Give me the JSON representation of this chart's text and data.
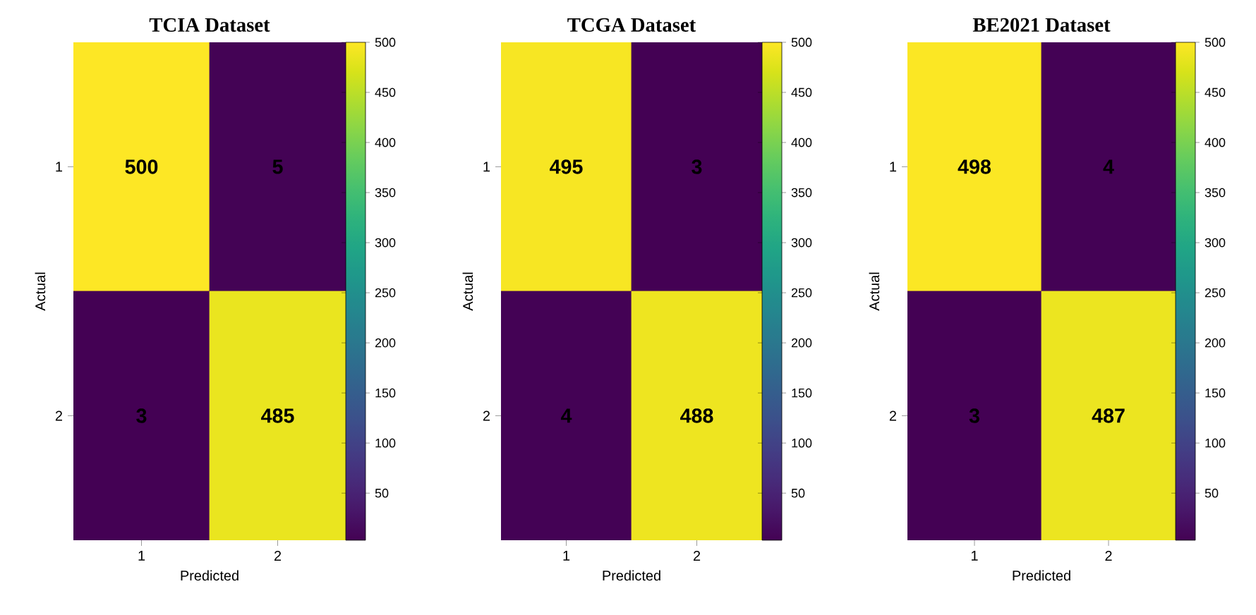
{
  "chart_data": [
    {
      "type": "heatmap",
      "title": "TCIA Dataset",
      "xlabel": "Predicted",
      "ylabel": "Actual",
      "categories": [
        "1",
        "2"
      ],
      "y_categories": [
        "1",
        "2"
      ],
      "cells": [
        [
          500,
          5
        ],
        [
          3,
          485
        ]
      ],
      "clim": [
        3,
        500
      ],
      "cticks": [
        50,
        100,
        150,
        200,
        250,
        300,
        350,
        400,
        450,
        500
      ],
      "data_labels": true
    },
    {
      "type": "heatmap",
      "title": "TCGA Dataset",
      "xlabel": "Predicted",
      "ylabel": "Actual",
      "categories": [
        "1",
        "2"
      ],
      "y_categories": [
        "1",
        "2"
      ],
      "cells": [
        [
          495,
          3
        ],
        [
          4,
          488
        ]
      ],
      "clim": [
        3,
        500
      ],
      "cticks": [
        50,
        100,
        150,
        200,
        250,
        300,
        350,
        400,
        450,
        500
      ],
      "data_labels": true
    },
    {
      "type": "heatmap",
      "title": "BE2021 Dataset",
      "xlabel": "Predicted",
      "ylabel": "Actual",
      "categories": [
        "1",
        "2"
      ],
      "y_categories": [
        "1",
        "2"
      ],
      "cells": [
        [
          498,
          4
        ],
        [
          3,
          487
        ]
      ],
      "clim": [
        3,
        500
      ],
      "cticks": [
        50,
        100,
        150,
        200,
        250,
        300,
        350,
        400,
        450,
        500
      ],
      "data_labels": true
    }
  ]
}
